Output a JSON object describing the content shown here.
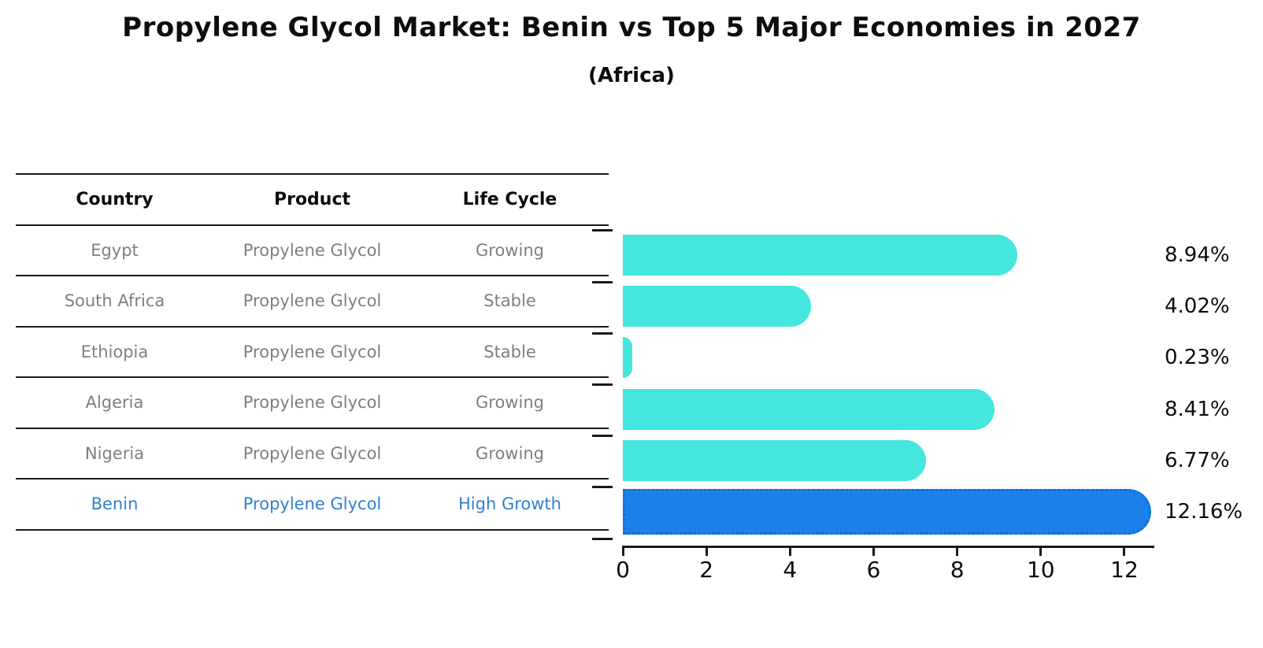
{
  "title": "Propylene Glycol Market: Benin vs Top 5 Major Economies in 2027",
  "subtitle": "(Africa)",
  "table": {
    "headers": [
      "Country",
      "Product",
      "Life Cycle"
    ],
    "rows": [
      {
        "country": "Egypt",
        "product": "Propylene Glycol",
        "life_cycle": "Growing",
        "highlight": false
      },
      {
        "country": "South Africa",
        "product": "Propylene Glycol",
        "life_cycle": "Stable",
        "highlight": false
      },
      {
        "country": "Ethiopia",
        "product": "Propylene Glycol",
        "life_cycle": "Stable",
        "highlight": false
      },
      {
        "country": "Algeria",
        "product": "Propylene Glycol",
        "life_cycle": "Growing",
        "highlight": false
      },
      {
        "country": "Nigeria",
        "product": "Propylene Glycol",
        "life_cycle": "Growing",
        "highlight": false
      },
      {
        "country": "Benin",
        "product": "Propylene Glycol",
        "life_cycle": "High Growth",
        "highlight": true
      }
    ]
  },
  "chart_data": {
    "type": "bar",
    "orientation": "horizontal",
    "title": "Propylene Glycol Market: Benin vs Top 5 Major Economies in 2027",
    "subtitle": "(Africa)",
    "categories": [
      "Egypt",
      "South Africa",
      "Ethiopia",
      "Algeria",
      "Nigeria",
      "Benin"
    ],
    "values": [
      8.94,
      4.02,
      0.23,
      8.41,
      6.77,
      12.16
    ],
    "value_labels": [
      "8.94%",
      "4.02%",
      "0.23%",
      "8.41%",
      "6.77%",
      "12.16%"
    ],
    "x_ticks": [
      0,
      2,
      4,
      6,
      8,
      10,
      12
    ],
    "xlim": [
      0,
      13
    ],
    "grid": false,
    "legend": "none",
    "highlight_index": 5,
    "bar_color": "#45e6de",
    "highlight_color": "#1b80ea",
    "highlight_text_color": "#3380cc",
    "text_color": "#0d0d0d",
    "muted_text_color": "#7f7f7f"
  }
}
